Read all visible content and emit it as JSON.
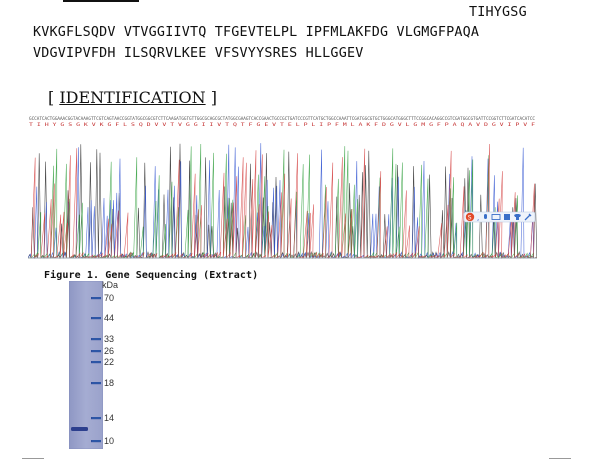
{
  "sequence": {
    "line0": "TIHYGSG",
    "line1": "KVKGFLSQDV VTVGGIIVTQ TFGEVTELPL IPFMLAKFDG VLGMGFPAQA",
    "line2": "VDGVIPVFDH ILSQRVLKEE VFSVYYSRES HLLGGEV"
  },
  "identification": {
    "open": "[ ",
    "title": "IDENTIFICATION",
    "close": " ]"
  },
  "chromatogram": {
    "bases_top": "GCCATCACTGGAAACGGTACAAAGTTCGTCAGTAACCGGTATGGCGGCGTCTTCAAGATGGTGTTGGCGCAGCGCTATGGCGAAGTCACCGAACTGCCGCTGATCCCGTTCATGCTGGCCAAATTCGATGGCGTGCTGGGCATGGGCTTTCCGGCACAGGCCGTCGATGGCGTGATTCCGGTCTTCGATCACATCC",
    "aa_bottom": "T I H Y G S G K V K G F L S Q D V V T V G G I I V T Q T F G E V T E L P L I P F M L A K F D G V L G M G F P A Q A V D G V I P V F",
    "colors": {
      "A": "#2e9e3a",
      "C": "#2a4fd0",
      "G": "#222222",
      "T": "#d23a3a"
    },
    "toolbar_icons": [
      "sogou-s-icon",
      "comma-icon",
      "mic-icon",
      "keyboard-icon",
      "grid-icon",
      "shirt-icon",
      "wrench-icon"
    ]
  },
  "figure_caption": "Figure 1. Gene Sequencing (Extract)",
  "gel": {
    "unit": "kDa",
    "markers": [
      "70",
      "44",
      "33",
      "26",
      "22",
      "18",
      "14",
      "10"
    ]
  }
}
